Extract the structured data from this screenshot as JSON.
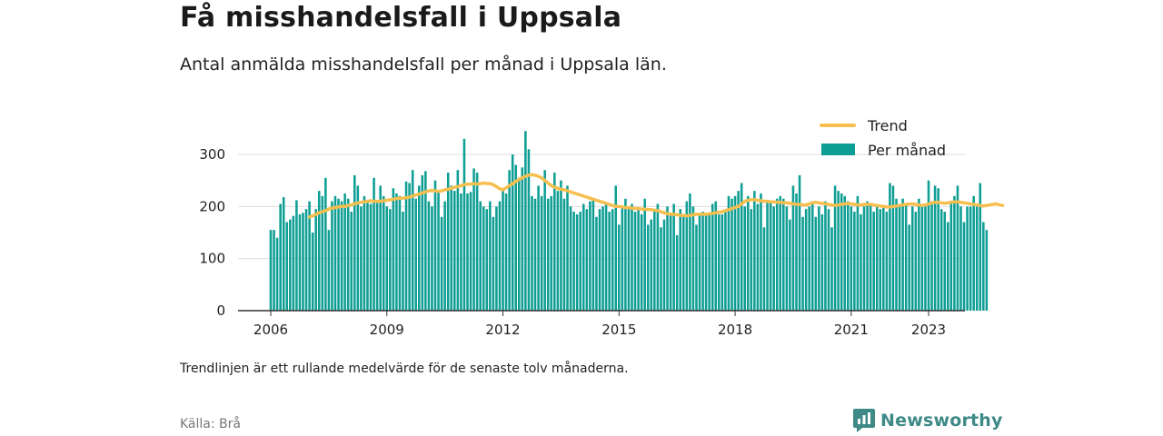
{
  "header": {
    "title": "Få misshandelsfall i Uppsala",
    "subtitle": "Antal anmälda misshandelsfall per månad i Uppsala län."
  },
  "footer": {
    "note": "Trendlinjen är ett rullande medelvärde för de senaste tolv månaderna.",
    "source": "Källa: Brå",
    "brand": "Newsworthy"
  },
  "colors": {
    "bars": "#0e9e94",
    "trend": "#f6bf4f",
    "brand": "#3d8a86"
  },
  "chart_data": {
    "type": "bar",
    "title": "",
    "xlabel": "",
    "ylabel": "",
    "ylim": [
      0,
      350
    ],
    "y_ticks": [
      0,
      100,
      200,
      300
    ],
    "x_ticks": [
      "2006",
      "2009",
      "2012",
      "2015",
      "2018",
      "2021",
      "2023"
    ],
    "grid": true,
    "legend_position": "top-right",
    "x_start": "2006-01",
    "series": [
      {
        "name": "Per månad",
        "kind": "bar",
        "values": [
          155,
          155,
          140,
          205,
          218,
          170,
          175,
          182,
          212,
          185,
          188,
          195,
          210,
          150,
          195,
          230,
          220,
          255,
          155,
          210,
          220,
          215,
          210,
          225,
          215,
          190,
          260,
          240,
          200,
          220,
          210,
          205,
          255,
          210,
          240,
          220,
          200,
          195,
          235,
          225,
          220,
          190,
          248,
          245,
          270,
          215,
          240,
          260,
          268,
          210,
          200,
          250,
          230,
          180,
          210,
          265,
          240,
          230,
          270,
          225,
          330,
          225,
          228,
          273,
          265,
          210,
          200,
          195,
          210,
          180,
          200,
          210,
          230,
          225,
          270,
          300,
          280,
          255,
          275,
          345,
          310,
          220,
          215,
          240,
          220,
          270,
          215,
          220,
          265,
          230,
          250,
          215,
          240,
          200,
          190,
          185,
          190,
          205,
          195,
          210,
          215,
          180,
          195,
          200,
          205,
          190,
          195,
          240,
          165,
          200,
          215,
          195,
          205,
          190,
          195,
          185,
          215,
          165,
          175,
          195,
          205,
          160,
          175,
          200,
          185,
          205,
          145,
          195,
          185,
          210,
          225,
          200,
          165,
          185,
          190,
          185,
          185,
          205,
          210,
          185,
          185,
          190,
          220,
          215,
          220,
          230,
          245,
          200,
          220,
          195,
          230,
          205,
          225,
          160,
          210,
          210,
          200,
          215,
          220,
          215,
          200,
          175,
          240,
          225,
          260,
          180,
          195,
          200,
          210,
          180,
          200,
          185,
          210,
          195,
          160,
          240,
          230,
          225,
          220,
          210,
          200,
          190,
          220,
          185,
          200,
          210,
          205,
          190,
          200,
          195,
          200,
          190,
          245,
          240,
          215,
          200,
          215,
          205,
          165,
          200,
          190,
          215,
          205,
          200,
          250,
          210,
          240,
          235,
          195,
          190,
          170,
          210,
          220,
          240,
          200,
          170,
          200,
          200,
          220,
          200,
          245,
          170,
          155
        ],
        "color": "#0e9e94"
      },
      {
        "name": "Trend",
        "kind": "line",
        "values": [
          null,
          null,
          null,
          null,
          null,
          null,
          null,
          null,
          null,
          null,
          null,
          null,
          180,
          182,
          185,
          188,
          190,
          192,
          195,
          197,
          198,
          199,
          200,
          200,
          202,
          203,
          205,
          207,
          208,
          209,
          210,
          211,
          210,
          210,
          210,
          211,
          212,
          213,
          214,
          215,
          216,
          216,
          217,
          218,
          220,
          222,
          224,
          226,
          228,
          230,
          231,
          230,
          229,
          230,
          232,
          233,
          235,
          237,
          238,
          240,
          242,
          243,
          243,
          244,
          243,
          244,
          245,
          244,
          244,
          242,
          238,
          234,
          232,
          236,
          240,
          244,
          248,
          252,
          255,
          258,
          260,
          261,
          260,
          258,
          255,
          250,
          245,
          240,
          237,
          235,
          233,
          232,
          230,
          228,
          226,
          224,
          222,
          220,
          218,
          216,
          214,
          212,
          210,
          208,
          206,
          204,
          202,
          200,
          200,
          199,
          198,
          198,
          197,
          196,
          196,
          195,
          195,
          194,
          194,
          193,
          192,
          190,
          188,
          186,
          185,
          185,
          184,
          183,
          183,
          182,
          183,
          184,
          185,
          185,
          185,
          185,
          186,
          187,
          188,
          189,
          190,
          192,
          194,
          196,
          198,
          200,
          205,
          210,
          212,
          213,
          213,
          212,
          211,
          210,
          210,
          209,
          209,
          208,
          208,
          207,
          207,
          206,
          205,
          204,
          204,
          203,
          203,
          205,
          207,
          208,
          207,
          206,
          205,
          204,
          203,
          202,
          203,
          204,
          205,
          206,
          205,
          204,
          203,
          203,
          204,
          204,
          204,
          203,
          202,
          201,
          200,
          199,
          199,
          200,
          201,
          202,
          203,
          204,
          205,
          205,
          204,
          203,
          202,
          203,
          205,
          207,
          208,
          208,
          207,
          206,
          207,
          208,
          209,
          209,
          208,
          207,
          206,
          205,
          204,
          203,
          202,
          201,
          202,
          203,
          204,
          205,
          203,
          202
        ],
        "color": "#f6bf4f"
      }
    ]
  }
}
